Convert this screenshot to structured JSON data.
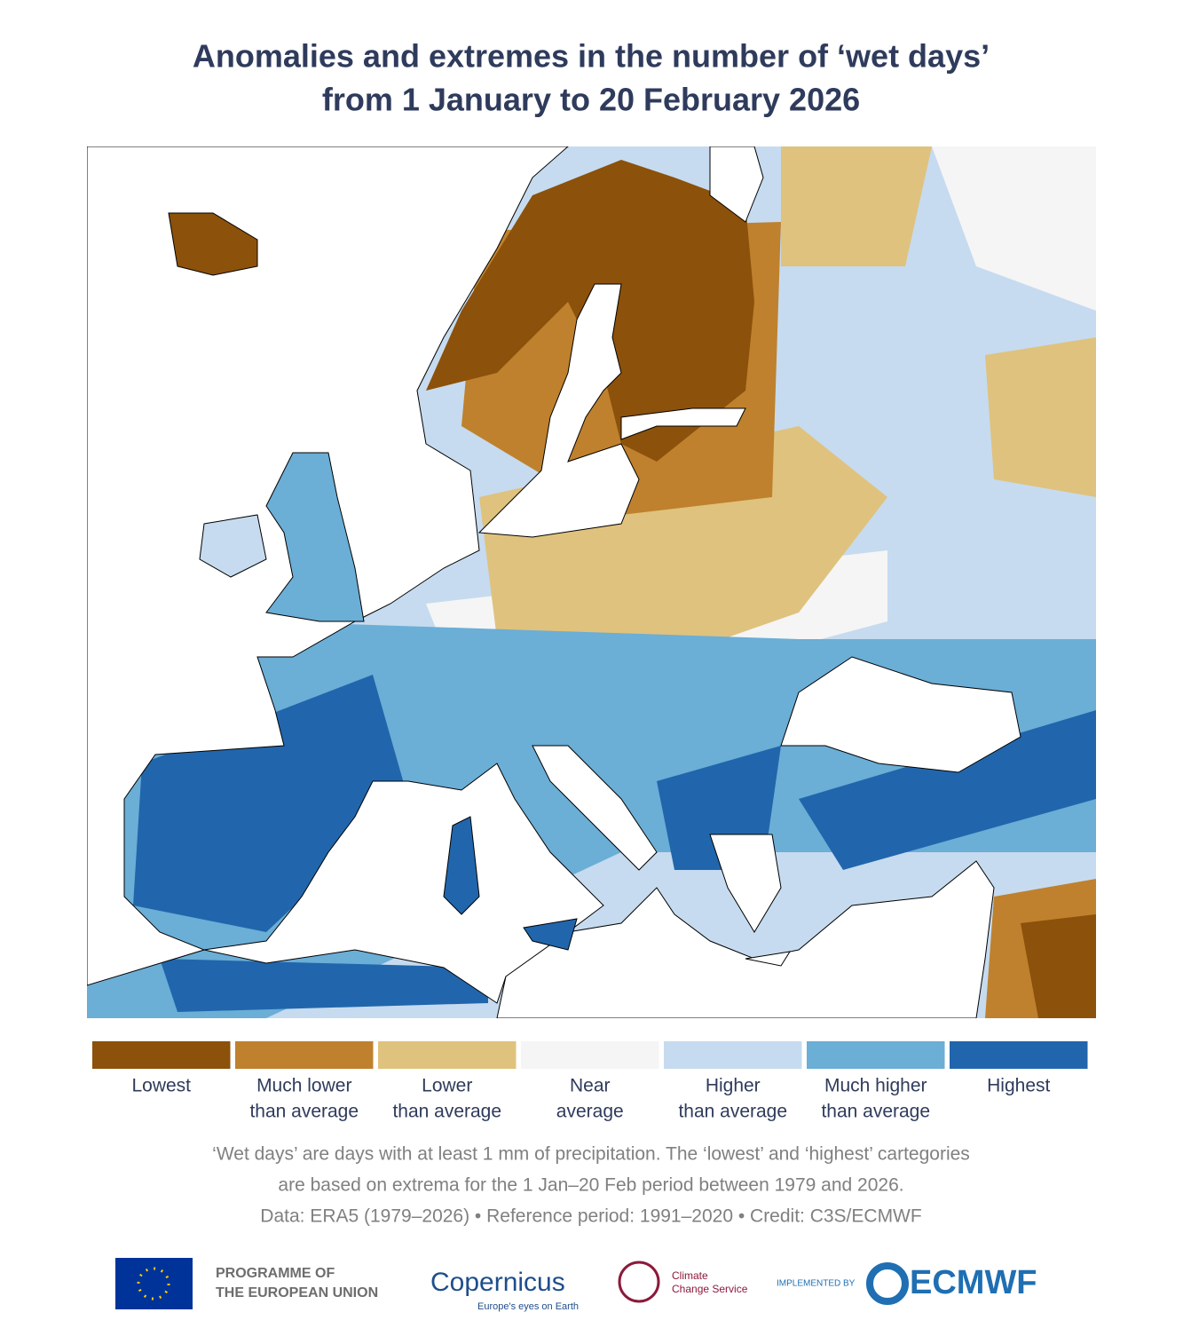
{
  "title": [
    "Anomalies and extremes in the number of ‘wet days’",
    "from 1 January to 20 February 2026"
  ],
  "legend": [
    {
      "label": [
        "Lowest"
      ],
      "color": "#8c510a"
    },
    {
      "label": [
        "Much lower",
        "than average"
      ],
      "color": "#bf812d"
    },
    {
      "label": [
        "Lower",
        "than average"
      ],
      "color": "#dfc27d"
    },
    {
      "label": [
        "Near",
        "average"
      ],
      "color": "#f5f5f5"
    },
    {
      "label": [
        "Higher",
        "than average"
      ],
      "color": "#c6dbef"
    },
    {
      "label": [
        "Much higher",
        "than average"
      ],
      "color": "#6baed6"
    },
    {
      "label": [
        "Highest"
      ],
      "color": "#2166ac"
    }
  ],
  "notes": [
    "‘Wet days’ are days with at least 1 mm of precipitation. The ‘lowest’ and ‘highest’ cartegories",
    "are based on extrema for the 1 Jan–20 Feb period between 1979 and 2026.",
    "Data: ERA5 (1979–2026) • Reference period: 1991–2020 • Credit: C3S/ECMWF"
  ],
  "logos": {
    "eu": [
      "PROGRAMME OF",
      "THE EUROPEAN UNION"
    ],
    "copernicus": [
      "Copernicus",
      "Europe's eyes on Earth"
    ],
    "c3s": [
      "Climate",
      "Change Service"
    ],
    "ecmwf": [
      "IMPLEMENTED BY",
      "ECMWF"
    ]
  }
}
